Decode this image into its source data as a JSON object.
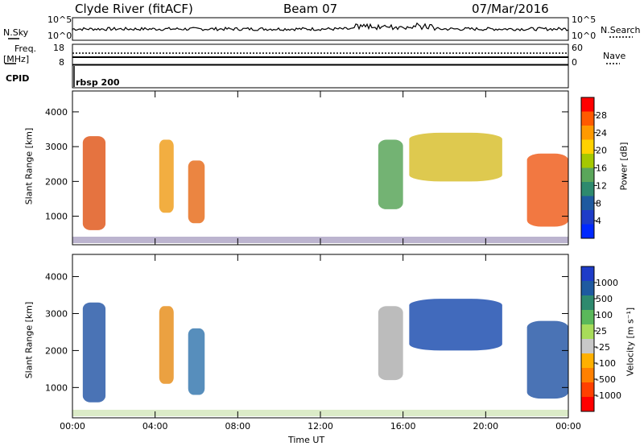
{
  "header": {
    "station": "Clyde River (fitACF)",
    "beam": "Beam 07",
    "date": "07/Mar/2016"
  },
  "top_panels": {
    "nsky_label": "N.Sky",
    "nsky_ticks": [
      "10^5",
      "10^0"
    ],
    "nsearch_label": "N.Search",
    "nsearch_ticks": [
      "10^5",
      "10^0"
    ],
    "freq_label": "Freq.",
    "freq_unit": "[MHz]",
    "freq_ticks": [
      "18",
      "8"
    ],
    "nave_label": "Nave",
    "nave_ticks": [
      "60",
      "0"
    ],
    "cpid_label": "CPID",
    "cpid_value": "rbsp 200"
  },
  "chart_data": [
    {
      "type": "heatmap",
      "panel": "power",
      "ylabel": "Slant Range [km]",
      "colorbar_label": "Power [dB]",
      "colorbar_ticks": [
        "28",
        "24",
        "20",
        "16",
        "12",
        "8",
        "4"
      ],
      "colorbar_colors": [
        "#ff0000",
        "#ff5a00",
        "#ff9a00",
        "#ffd200",
        "#a5c800",
        "#5aa65a",
        "#2e8a6e",
        "#1e5aa0",
        "#1e3cc8",
        "#0028ff"
      ],
      "yticks": [
        1000,
        2000,
        3000,
        4000
      ],
      "ylim": [
        180,
        4600
      ],
      "xticks": [
        "00:00",
        "04:00",
        "08:00",
        "12:00",
        "16:00",
        "20:00",
        "00:00"
      ],
      "xlim": [
        0,
        24
      ],
      "blobs": [
        {
          "t0": 0.5,
          "t1": 1.6,
          "r0": 600,
          "r1": 3300,
          "c": "#e05a1e"
        },
        {
          "t0": 4.2,
          "t1": 4.9,
          "r0": 1100,
          "r1": 3200,
          "c": "#f0a020"
        },
        {
          "t0": 5.6,
          "t1": 6.4,
          "r0": 800,
          "r1": 2600,
          "c": "#e87020"
        },
        {
          "t0": 14.8,
          "t1": 16.0,
          "r0": 1200,
          "r1": 3200,
          "c": "#5aa65a"
        },
        {
          "t0": 16.3,
          "t1": 20.8,
          "r0": 2000,
          "r1": 3400,
          "c": "#d8c030"
        },
        {
          "t0": 22.0,
          "t1": 24.0,
          "r0": 700,
          "r1": 2800,
          "c": "#f06020"
        }
      ]
    },
    {
      "type": "heatmap",
      "panel": "velocity",
      "ylabel": "Slant Range [km]",
      "colorbar_label": "Velocity [m s⁻¹]",
      "colorbar_ticks": [
        "1000",
        "500",
        "100",
        "25",
        "-25",
        "-100",
        "-500",
        "-1000"
      ],
      "colorbar_colors": [
        "#1e3cc8",
        "#1e5aa0",
        "#2e8a6e",
        "#5ab85a",
        "#a8dc5a",
        "#c8c8c8",
        "#ffb000",
        "#ff8000",
        "#ff4000",
        "#ff0000"
      ],
      "yticks": [
        1000,
        2000,
        3000,
        4000
      ],
      "ylim": [
        180,
        4600
      ],
      "xticks": [
        "00:00",
        "04:00",
        "08:00",
        "12:00",
        "16:00",
        "20:00",
        "00:00"
      ],
      "xlim": [
        0,
        24
      ],
      "xlabel": "Time UT",
      "blobs": [
        {
          "t0": 0.5,
          "t1": 1.6,
          "r0": 600,
          "r1": 3300,
          "c": "#2a5aa8"
        },
        {
          "t0": 4.2,
          "t1": 4.9,
          "r0": 1100,
          "r1": 3200,
          "c": "#e89020"
        },
        {
          "t0": 5.6,
          "t1": 6.4,
          "r0": 800,
          "r1": 2600,
          "c": "#3a7ab0"
        },
        {
          "t0": 14.8,
          "t1": 16.0,
          "r0": 1200,
          "r1": 3200,
          "c": "#b0b0b0"
        },
        {
          "t0": 16.3,
          "t1": 20.8,
          "r0": 2000,
          "r1": 3400,
          "c": "#2050b0"
        },
        {
          "t0": 22.0,
          "t1": 24.0,
          "r0": 700,
          "r1": 2800,
          "c": "#2a5aa8"
        }
      ]
    }
  ]
}
